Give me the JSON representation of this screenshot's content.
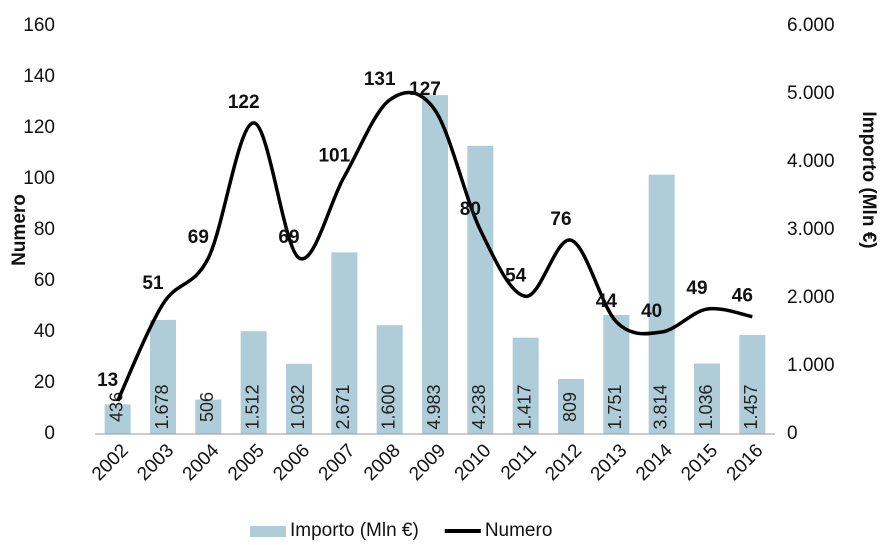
{
  "chart_data": {
    "type": "combo",
    "categories": [
      "2002",
      "2003",
      "2004",
      "2005",
      "2006",
      "2007",
      "2008",
      "2009",
      "2010",
      "2011",
      "2012",
      "2013",
      "2014",
      "2015",
      "2016"
    ],
    "series": [
      {
        "name": "Importo (Mln €)",
        "type": "bar",
        "axis": "y2",
        "color": "#afcdd9",
        "values": [
          436,
          1678,
          506,
          1512,
          1032,
          2671,
          1600,
          4983,
          4238,
          1417,
          809,
          1751,
          3814,
          1036,
          1457
        ],
        "value_labels": [
          "436",
          "1.678",
          "506",
          "1.512",
          "1.032",
          "2.671",
          "1.600",
          "4.983",
          "4.238",
          "1.417",
          "809",
          "1.751",
          "3.814",
          "1.036",
          "1.457"
        ]
      },
      {
        "name": "Numero",
        "type": "line",
        "color": "#000000",
        "values": [
          13,
          51,
          69,
          122,
          69,
          101,
          131,
          127,
          80,
          54,
          76,
          44,
          40,
          49,
          46
        ]
      }
    ],
    "ylabel": "Numero",
    "y2label": "Importo (Mln €)",
    "ylim": [
      0,
      160
    ],
    "yticks": [
      0,
      20,
      40,
      60,
      80,
      100,
      120,
      140,
      160
    ],
    "y2lim": [
      0,
      6000
    ],
    "y2ticks": [
      0,
      {
        "value": 1000,
        "label": "1.000"
      },
      {
        "value": 2000,
        "label": "2.000"
      },
      {
        "value": 3000,
        "label": "3.000"
      },
      {
        "value": 4000,
        "label": "4.000"
      },
      {
        "value": 5000,
        "label": "5.000"
      },
      {
        "value": 6000,
        "label": "6.000"
      }
    ],
    "legend": "bottom",
    "grid": false
  }
}
